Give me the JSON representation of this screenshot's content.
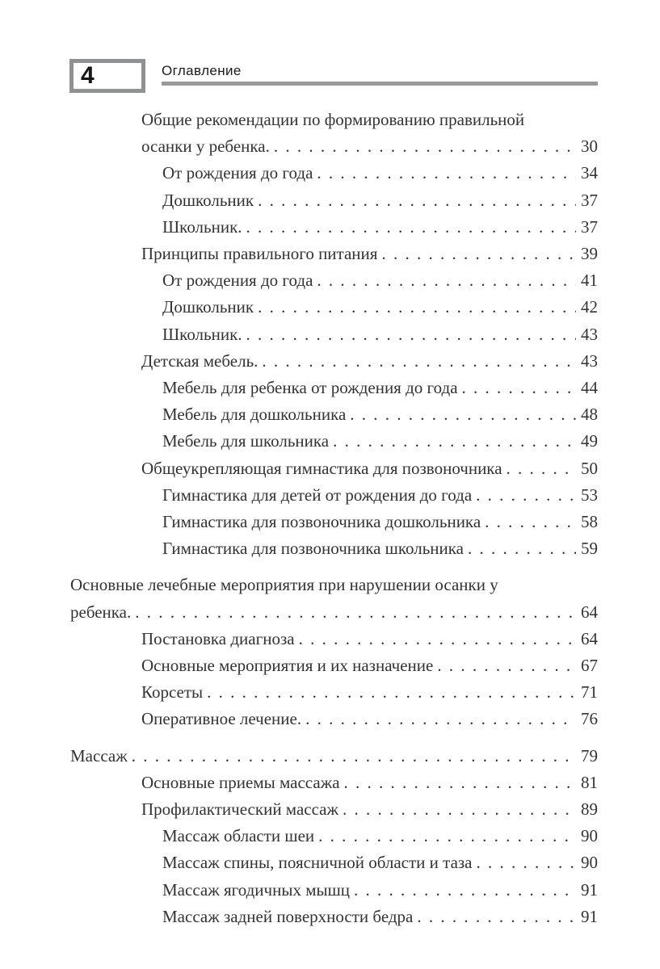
{
  "page": {
    "number": "4",
    "header_title": "Оглавление"
  },
  "colors": {
    "background": "#ffffff",
    "text": "#333333",
    "header_text": "#1a1a1a",
    "rule_gray": "#97999b",
    "box_border_gray": "#8f9193"
  },
  "toc": {
    "entries": [
      {
        "level": 1,
        "title": "Общие рекомендации по формированию правильной осанки у ребенка.",
        "page": "30"
      },
      {
        "level": 2,
        "title": "От рождения до года",
        "page": "34"
      },
      {
        "level": 2,
        "title": "Дошкольник",
        "page": "37"
      },
      {
        "level": 2,
        "title": "Школьник.",
        "page": "37"
      },
      {
        "level": 1,
        "title": "Принципы правильного питания",
        "page": "39"
      },
      {
        "level": 2,
        "title": "От рождения до года",
        "page": "41"
      },
      {
        "level": 2,
        "title": "Дошкольник",
        "page": "42"
      },
      {
        "level": 2,
        "title": "Школьник.",
        "page": "43"
      },
      {
        "level": 1,
        "title": "Детская мебель.",
        "page": "43"
      },
      {
        "level": 2,
        "title": "Мебель для ребенка от рождения до года",
        "page": "44"
      },
      {
        "level": 2,
        "title": "Мебель для дошкольника",
        "page": "48"
      },
      {
        "level": 2,
        "title": "Мебель для школьника",
        "page": "49"
      },
      {
        "level": 1,
        "title": "Общеукрепляющая гимнастика для позвоночника",
        "page": "50"
      },
      {
        "level": 2,
        "title": "Гимнастика для детей от рождения до года",
        "page": "53"
      },
      {
        "level": 2,
        "title": "Гимнастика для позвоночника дошкольника",
        "page": "58"
      },
      {
        "level": 2,
        "title": "Гимнастика для позвоночника школьника",
        "page": "59"
      },
      {
        "level": 0,
        "title": "Основные лечебные мероприятия при нарушении осанки у ребенка.",
        "page": "64"
      },
      {
        "level": 1,
        "title": "Постановка диагноза",
        "page": "64"
      },
      {
        "level": 1,
        "title": "Основные мероприятия и их назначение",
        "page": "67"
      },
      {
        "level": 1,
        "title": "Корсеты",
        "page": "71"
      },
      {
        "level": 1,
        "title": "Оперативное лечение.",
        "page": "76"
      },
      {
        "level": 0,
        "title": "Массаж",
        "page": "79"
      },
      {
        "level": 1,
        "title": "Основные приемы массажа",
        "page": "81"
      },
      {
        "level": 1,
        "title": "Профилактический массаж",
        "page": "89"
      },
      {
        "level": 2,
        "title": "Массаж области шеи",
        "page": "90"
      },
      {
        "level": 2,
        "title": "Массаж спины, поясничной области и таза",
        "page": "90"
      },
      {
        "level": 2,
        "title": "Массаж ягодичных мышц",
        "page": "91"
      },
      {
        "level": 2,
        "title": "Массаж задней поверхности бедра",
        "page": "91"
      }
    ]
  }
}
